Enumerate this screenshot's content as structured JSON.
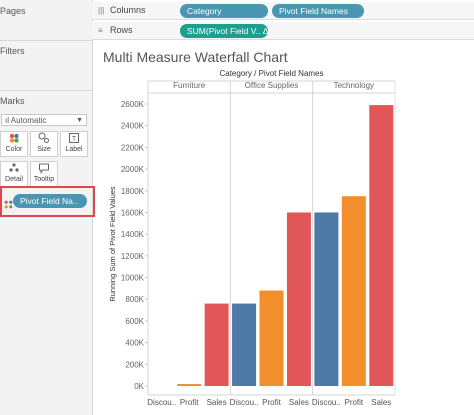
{
  "panels": {
    "pages": "Pages",
    "filters": "Filters",
    "marks": "Marks",
    "mark_type": "Automatic",
    "buttons": [
      {
        "label": "Color",
        "icon": "color-icon"
      },
      {
        "label": "Size",
        "icon": "size-icon"
      },
      {
        "label": "Label",
        "icon": "label-icon"
      },
      {
        "label": "Detail",
        "icon": "detail-icon"
      },
      {
        "label": "Tooltip",
        "icon": "tooltip-icon"
      }
    ],
    "mark_pill": "Pivot Field Na.."
  },
  "shelves": {
    "columns_label": "Columns",
    "rows_label": "Rows",
    "columns_pills": [
      "Category",
      "Pivot Field Names"
    ],
    "rows_pill": "SUM(Pivot Field V.. Δ"
  },
  "colors": {
    "Discount": "#4e79a7",
    "Profit": "#f28e2b",
    "Sales": "#e15759",
    "pill_green": "#1e9e8e",
    "pill_blue": "#4996b2"
  },
  "chart_data": {
    "type": "bar",
    "title": "Multi Measure Waterfall Chart",
    "header_label": "Category / Pivot Field Names",
    "ylabel": "Running Sum of Pivot Field Values",
    "ylim": [
      0,
      2700000
    ],
    "y_ticks": [
      0,
      200000,
      400000,
      600000,
      800000,
      1000000,
      1200000,
      1400000,
      1600000,
      1800000,
      2000000,
      2200000,
      2400000,
      2600000
    ],
    "y_tick_labels": [
      "0K",
      "200K",
      "400K",
      "600K",
      "800K",
      "1000K",
      "1200K",
      "1400K",
      "1600K",
      "1800K",
      "2000K",
      "2200K",
      "2400K",
      "2600K"
    ],
    "groups": [
      {
        "name": "Furniture",
        "bars": [
          {
            "label": "Discou..",
            "measure": "Discount",
            "value": 0
          },
          {
            "label": "Profit",
            "measure": "Profit",
            "value": 18000
          },
          {
            "label": "Sales",
            "measure": "Sales",
            "value": 760000
          }
        ]
      },
      {
        "name": "Office Supplies",
        "bars": [
          {
            "label": "Discou..",
            "measure": "Discount",
            "value": 760000
          },
          {
            "label": "Profit",
            "measure": "Profit",
            "value": 880000
          },
          {
            "label": "Sales",
            "measure": "Sales",
            "value": 1600000
          }
        ]
      },
      {
        "name": "Technology",
        "bars": [
          {
            "label": "Discou..",
            "measure": "Discount",
            "value": 1600000
          },
          {
            "label": "Profit",
            "measure": "Profit",
            "value": 1750000
          },
          {
            "label": "Sales",
            "measure": "Sales",
            "value": 2590000
          }
        ]
      }
    ]
  }
}
